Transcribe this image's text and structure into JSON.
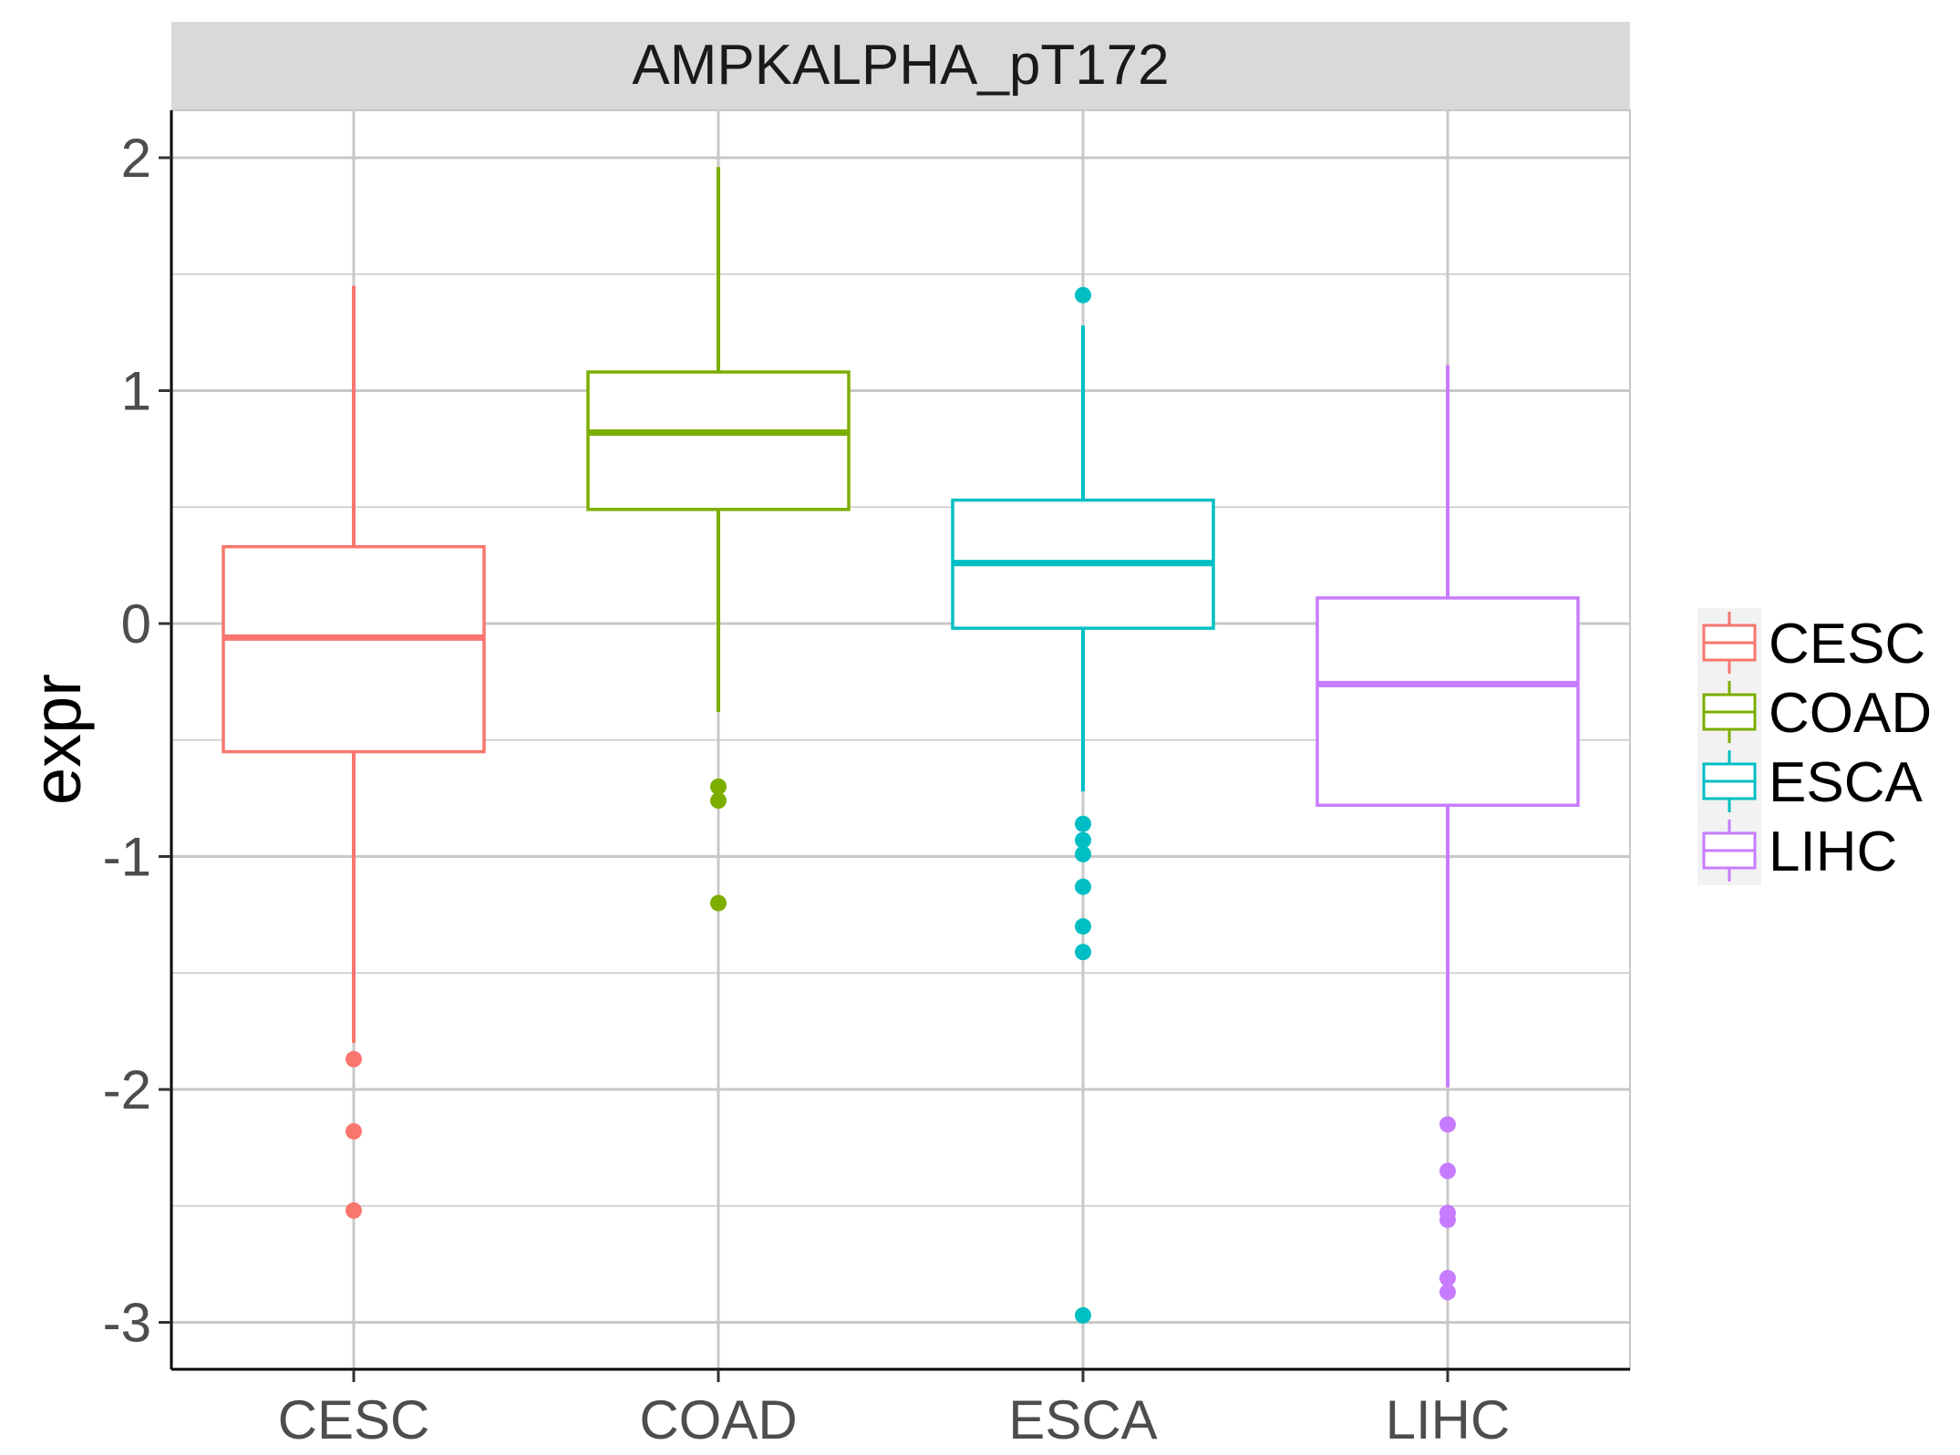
{
  "chart_data": {
    "type": "box",
    "facet_title": "AMPKALPHA_pT172",
    "xlabel": "",
    "ylabel": "expr",
    "ylim": [
      -3.2,
      2.2
    ],
    "yticks": [
      2,
      1,
      0,
      -1,
      -2,
      -3
    ],
    "ytick_labels": [
      "2",
      "1",
      "0",
      "-1",
      "-2",
      "-3"
    ],
    "grid": true,
    "legend_position": "right",
    "categories": [
      "CESC",
      "COAD",
      "ESCA",
      "LIHC"
    ],
    "series": [
      {
        "name": "CESC",
        "color": "#F8766D",
        "whisker_low": -1.8,
        "q1": -0.55,
        "median": -0.06,
        "q3": 0.33,
        "whisker_high": 1.45,
        "outliers": [
          -1.87,
          -2.18,
          -2.52
        ]
      },
      {
        "name": "COAD",
        "color": "#7CAE00",
        "whisker_low": -0.38,
        "q1": 0.49,
        "median": 0.82,
        "q3": 1.08,
        "whisker_high": 1.96,
        "outliers": [
          -0.7,
          -0.76,
          -1.2
        ]
      },
      {
        "name": "ESCA",
        "color": "#00BFC4",
        "whisker_low": -0.72,
        "q1": -0.02,
        "median": 0.26,
        "q3": 0.53,
        "whisker_high": 1.28,
        "outliers": [
          1.41,
          -0.86,
          -0.93,
          -0.99,
          -1.13,
          -1.3,
          -1.41,
          -2.97
        ]
      },
      {
        "name": "LIHC",
        "color": "#C77CFF",
        "whisker_low": -1.99,
        "q1": -0.78,
        "median": -0.26,
        "q3": 0.11,
        "whisker_high": 1.11,
        "outliers": [
          -2.15,
          -2.35,
          -2.53,
          -2.56,
          -2.81,
          -2.87
        ]
      }
    ]
  }
}
